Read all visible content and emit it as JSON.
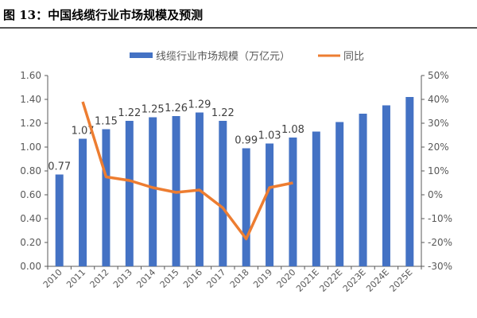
{
  "figure_title": "图 13：中国线缆行业市场规模及预测",
  "chart_data": {
    "type": "bar+line",
    "title": "",
    "categories": [
      "2010",
      "2011",
      "2012",
      "2013",
      "2014",
      "2015",
      "2016",
      "2017",
      "2018",
      "2019",
      "2020",
      "2021E",
      "2022E",
      "2023E",
      "2024E",
      "2025E"
    ],
    "series": [
      {
        "name": "线缆行业市场规模（万亿元）",
        "type": "bar",
        "axis": "left",
        "color": "#4472C4",
        "values": [
          0.77,
          1.07,
          1.15,
          1.22,
          1.25,
          1.26,
          1.29,
          1.22,
          0.99,
          1.03,
          1.08,
          1.13,
          1.21,
          1.28,
          1.35,
          1.42
        ],
        "data_labels": [
          "0.77",
          "1.07",
          "1.15",
          "1.22",
          "1.25",
          "1.26",
          "1.29",
          "1.22",
          "0.99",
          "1.03",
          "1.08",
          null,
          null,
          null,
          null,
          null
        ]
      },
      {
        "name": "同比",
        "type": "line",
        "axis": "right",
        "color": "#ED7D31",
        "values": [
          null,
          39,
          7.5,
          6,
          3,
          1,
          2,
          -5.5,
          -18.5,
          3,
          5,
          null,
          null,
          null,
          null,
          null
        ]
      }
    ],
    "left_axis": {
      "ylim": [
        0,
        1.6
      ],
      "ticks": [
        "0.00",
        "0.20",
        "0.40",
        "0.60",
        "0.80",
        "1.00",
        "1.20",
        "1.40",
        "1.60"
      ]
    },
    "right_axis": {
      "ylim": [
        -30,
        50
      ],
      "ticks": [
        "-30%",
        "-20%",
        "-10%",
        "0%",
        "10%",
        "20%",
        "30%",
        "40%",
        "50%"
      ]
    },
    "legend": "top",
    "grid": false
  }
}
